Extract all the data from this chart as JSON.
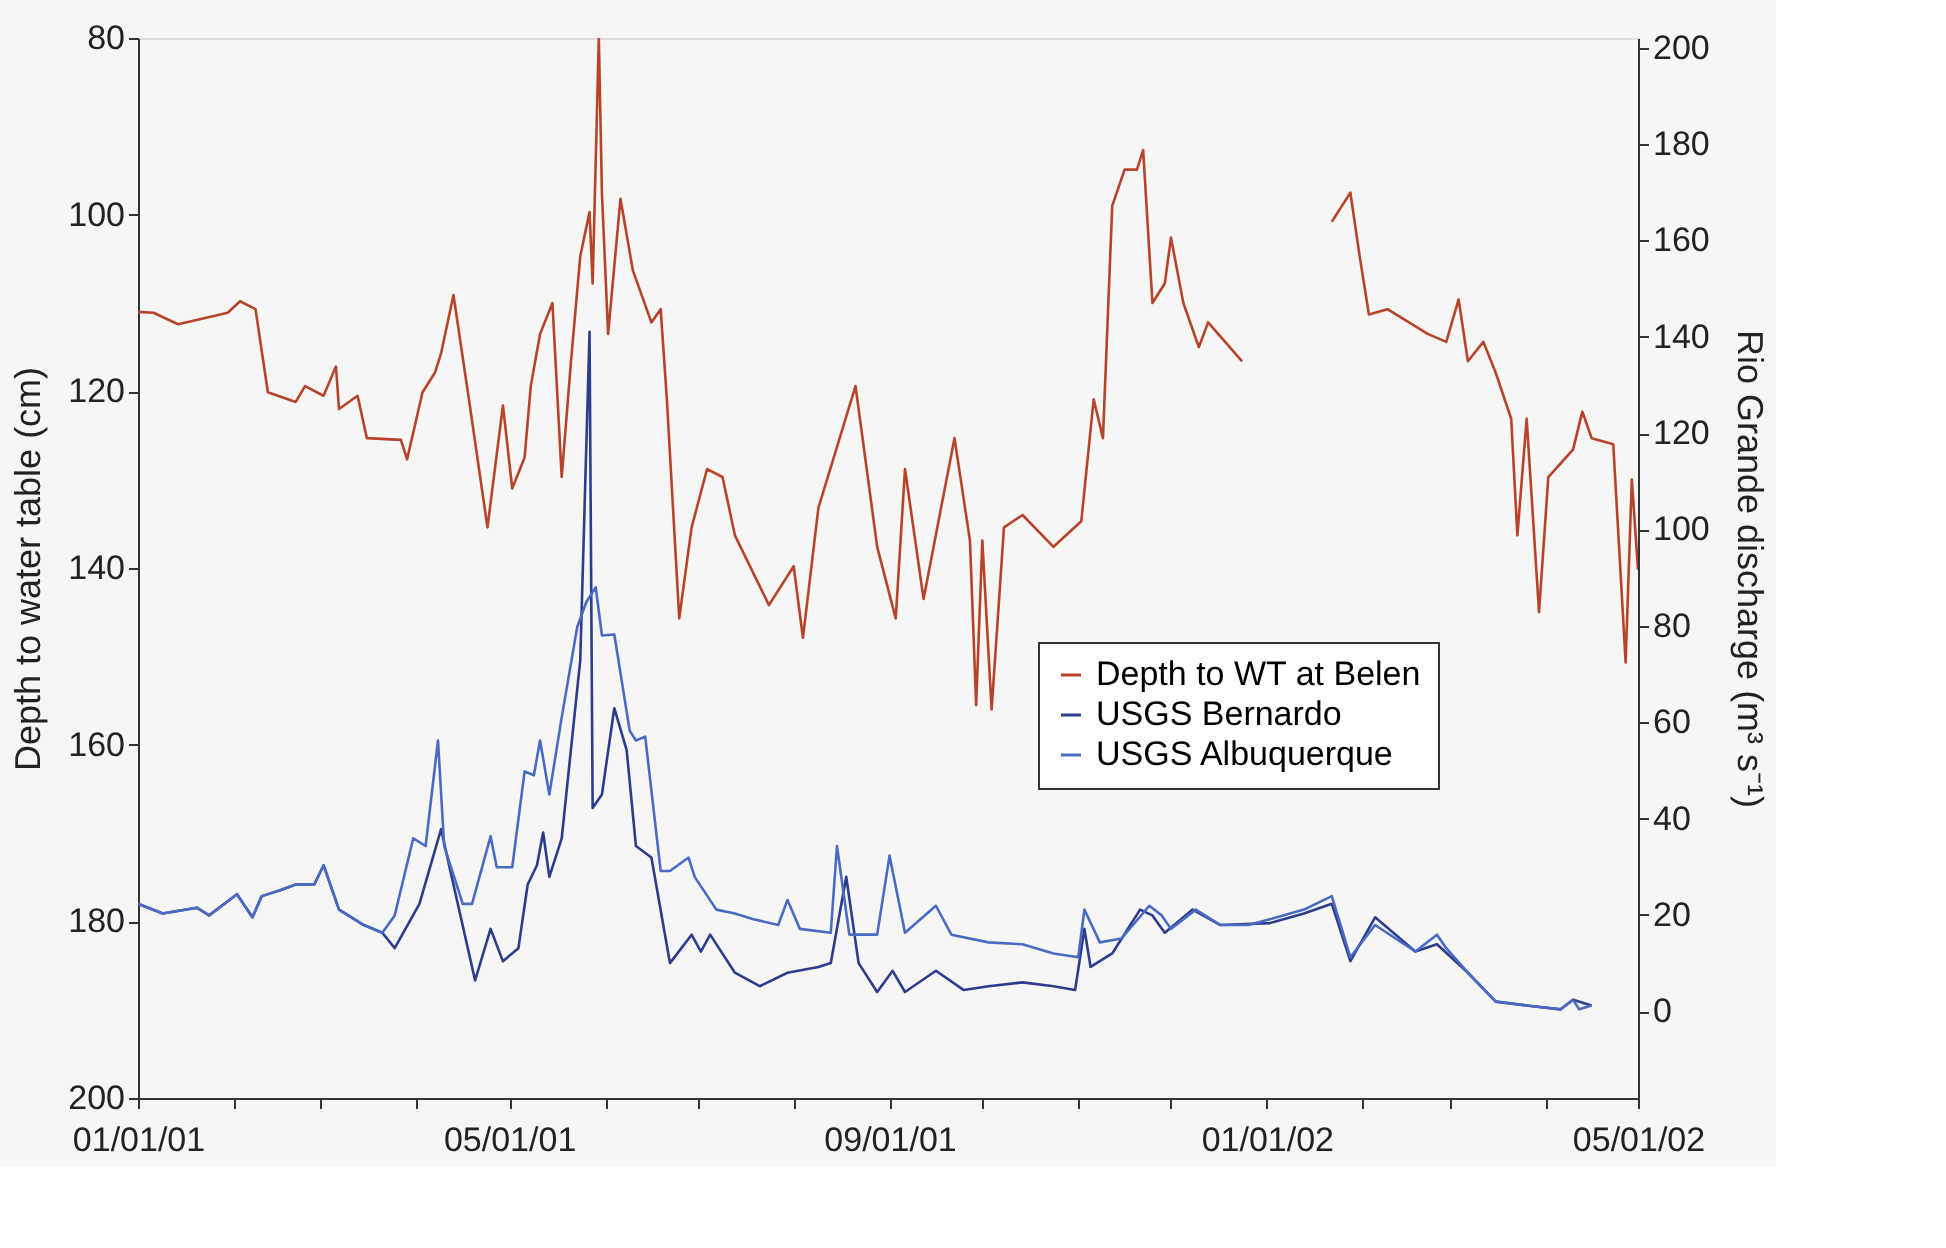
{
  "chart_data": {
    "type": "line",
    "ylabel": "Depth to water table (cm)",
    "y2label": "Rio Grande discharge (m³ s⁻¹)",
    "ylim": [
      200,
      80
    ],
    "yticks": [
      80,
      100,
      120,
      140,
      160,
      180,
      200
    ],
    "y2lim": [
      -18,
      202
    ],
    "y2ticks": [
      0,
      20,
      40,
      60,
      80,
      100,
      120,
      140,
      160,
      180,
      200
    ],
    "xlim": [
      "2001-01-01",
      "2002-05-01"
    ],
    "xticks": [
      {
        "value": "2001-01-01",
        "label": "01/01/01"
      },
      {
        "value": "2001-02-01",
        "label": null
      },
      {
        "value": "2001-03-01",
        "label": null
      },
      {
        "value": "2001-04-01",
        "label": null
      },
      {
        "value": "2001-05-01",
        "label": "05/01/01"
      },
      {
        "value": "2001-06-01",
        "label": null
      },
      {
        "value": "2001-07-01",
        "label": null
      },
      {
        "value": "2001-08-01",
        "label": null
      },
      {
        "value": "2001-09-01",
        "label": "09/01/01"
      },
      {
        "value": "2001-10-01",
        "label": null
      },
      {
        "value": "2001-11-01",
        "label": null
      },
      {
        "value": "2001-12-01",
        "label": null
      },
      {
        "value": "2002-01-01",
        "label": "01/01/02"
      },
      {
        "value": "2002-02-01",
        "label": null
      },
      {
        "value": "2002-03-01",
        "label": null
      },
      {
        "value": "2002-04-01",
        "label": null
      },
      {
        "value": "2002-05-01",
        "label": "05/01/02"
      }
    ],
    "legend": "right",
    "series": [
      {
        "name": "Depth to WT at Belen",
        "color": "#b8432b",
        "x": [
          "2001-01-01",
          "2001-01-06",
          "2001-01-14",
          "2001-01-30",
          "2001-02-03",
          "2001-02-08",
          "2001-02-12",
          "2001-02-21",
          "2001-02-24",
          "2001-03-02",
          "2001-03-06",
          "2001-03-07",
          "2001-03-13",
          "2001-03-16",
          "2001-03-27",
          "2001-03-29",
          "2001-04-03",
          "2001-04-07",
          "2001-04-09",
          "2001-04-13",
          "2001-04-18",
          "2001-04-24",
          "2001-04-29",
          "2001-05-02",
          "2001-05-06",
          "2001-05-08",
          "2001-05-11",
          "2001-05-15",
          "2001-05-18",
          "2001-05-21",
          "2001-05-24",
          "2001-05-27",
          "2001-05-28",
          "2001-05-30",
          "2001-05-31",
          "2001-06-02",
          "2001-06-06",
          "2001-06-10",
          "2001-06-16",
          "2001-06-19",
          "2001-06-21",
          "2001-06-25",
          "2001-06-29",
          "2001-07-04",
          "2001-07-09",
          "2001-07-13",
          "2001-07-24",
          "2001-08-01",
          "2001-08-04",
          "2001-08-09",
          "2001-08-21",
          "2001-08-28",
          "2001-09-03",
          "2001-09-06",
          "2001-09-12",
          "2001-09-22",
          "2001-09-27",
          "2001-09-29",
          "2001-10-01",
          "2001-10-04",
          "2001-10-08",
          "2001-10-14",
          "2001-10-24",
          "2001-11-02",
          "2001-11-06",
          "2001-11-09",
          "2001-11-12",
          "2001-11-16",
          "2001-11-20",
          "2001-11-22",
          "2001-11-25",
          "2001-11-29",
          "2001-12-01",
          "2001-12-05",
          "2001-12-10",
          "2001-12-13",
          "2001-12-24",
          "2002-01-05",
          "2002-01-22",
          "2002-01-28",
          "2002-01-31",
          "2002-02-03",
          "2002-02-09",
          "2002-02-22",
          "2002-02-28",
          "2002-03-04",
          "2002-03-07",
          "2002-03-12",
          "2002-03-16",
          "2002-03-21",
          "2002-03-23",
          "2002-03-26",
          "2002-03-30",
          "2002-04-02",
          "2002-04-10",
          "2002-04-13",
          "2002-04-16",
          "2002-04-23",
          "2002-04-27",
          "2002-04-29",
          "2002-05-01"
        ],
        "values": [
          111,
          111.1,
          112.4,
          111.1,
          109.8,
          110.7,
          120.1,
          121.2,
          119.4,
          120.5,
          117.2,
          122,
          120.5,
          125.3,
          125.5,
          127.7,
          120.1,
          117.9,
          115.7,
          109.1,
          120.9,
          135.4,
          121.6,
          131,
          127.5,
          119.4,
          113.5,
          110,
          129.7,
          116.6,
          104.7,
          99.7,
          107.8,
          80,
          97.5,
          113.5,
          98.2,
          106.3,
          112.2,
          110.7,
          120.9,
          145.7,
          135.4,
          128.8,
          129.7,
          136.3,
          144.2,
          139.8,
          147.9,
          133.2,
          119.4,
          137.6,
          145.7,
          128.8,
          143.5,
          125.3,
          136.9,
          155.5,
          136.9,
          156,
          135.4,
          134,
          137.6,
          134.7,
          120.9,
          125.3,
          99,
          94.9,
          94.9,
          92.7,
          110,
          107.8,
          102.6,
          110,
          115,
          112.2,
          116.6,
          null,
          100.8,
          97.5,
          104.7,
          111.3,
          110.7,
          113.5,
          114.4,
          109.6,
          116.6,
          114.4,
          117.9,
          123.1,
          136.3,
          123.1,
          145,
          129.7,
          126.6,
          122.3,
          125.3,
          126,
          150.7,
          130,
          140.2
        ]
      },
      {
        "name": "USGS Bernardo",
        "color": "#2b3d8c",
        "axis": "y2",
        "x": [
          "2001-01-01",
          "2001-01-09",
          "2001-01-20",
          "2001-01-24",
          "2001-02-02",
          "2001-02-07",
          "2001-02-10",
          "2001-02-16",
          "2001-02-21",
          "2001-02-27",
          "2001-03-02",
          "2001-03-07",
          "2001-03-15",
          "2001-03-21",
          "2001-03-25",
          "2001-04-02",
          "2001-04-09",
          "2001-04-12",
          "2001-04-20",
          "2001-04-25",
          "2001-04-29",
          "2001-05-04",
          "2001-05-07",
          "2001-05-10",
          "2001-05-12",
          "2001-05-14",
          "2001-05-18",
          "2001-05-24",
          "2001-05-27",
          "2001-05-28",
          "2001-05-31",
          "2001-06-04",
          "2001-06-08",
          "2001-06-11",
          "2001-06-16",
          "2001-06-22",
          "2001-06-29",
          "2001-07-02",
          "2001-07-05",
          "2001-07-13",
          "2001-07-21",
          "2001-07-30",
          "2001-08-09",
          "2001-08-13",
          "2001-08-18",
          "2001-08-22",
          "2001-08-28",
          "2001-09-02",
          "2001-09-06",
          "2001-09-16",
          "2001-09-25",
          "2001-10-03",
          "2001-10-14",
          "2001-10-24",
          "2001-10-31",
          "2001-11-03",
          "2001-11-05",
          "2001-11-12",
          "2001-11-21",
          "2001-11-25",
          "2001-11-29",
          "2001-12-08",
          "2001-12-17",
          "2002-01-02",
          "2002-01-13",
          "2002-01-22",
          "2002-01-28",
          "2002-02-05",
          "2002-02-18",
          "2002-02-25",
          "2002-03-07",
          "2002-03-16",
          "2002-03-26",
          "2002-04-06",
          "2002-04-10",
          "2002-04-16"
        ],
        "values": [
          22.3,
          20.3,
          21.5,
          19.9,
          24.3,
          19.5,
          23.9,
          25.1,
          26.3,
          26.3,
          30.3,
          21.1,
          17.9,
          16.3,
          13.1,
          22.3,
          37.8,
          29.1,
          6.4,
          17.1,
          10.4,
          13.1,
          26.3,
          30.3,
          37.1,
          27.9,
          35.9,
          72.9,
          141,
          42.2,
          45,
          62.9,
          54.2,
          34.3,
          31.9,
          10,
          15.9,
          12.4,
          15.9,
          8,
          5.2,
          8,
          9.2,
          10,
          27.9,
          10,
          4,
          8.4,
          4,
          8.4,
          4.4,
          5.2,
          6,
          5.2,
          4.4,
          17.1,
          9.2,
          12,
          21.1,
          19.9,
          16.3,
          21.1,
          17.9,
          18.3,
          20.3,
          22.3,
          10.4,
          19.5,
          12.4,
          13.9,
          8,
          2,
          1.2,
          0.4,
          2.4,
          1.2
        ]
      },
      {
        "name": "USGS Albuquerque",
        "color": "#4a6bc4",
        "axis": "y2",
        "x": [
          "2001-01-01",
          "2001-01-09",
          "2001-01-20",
          "2001-01-24",
          "2001-02-02",
          "2001-02-07",
          "2001-02-10",
          "2001-02-16",
          "2001-02-21",
          "2001-02-27",
          "2001-03-02",
          "2001-03-07",
          "2001-03-15",
          "2001-03-21",
          "2001-03-25",
          "2001-03-31",
          "2001-04-04",
          "2001-04-08",
          "2001-04-10",
          "2001-04-16",
          "2001-04-19",
          "2001-04-25",
          "2001-04-27",
          "2001-05-02",
          "2001-05-06",
          "2001-05-09",
          "2001-05-11",
          "2001-05-14",
          "2001-05-18",
          "2001-05-23",
          "2001-05-26",
          "2001-05-29",
          "2001-05-31",
          "2001-06-04",
          "2001-06-09",
          "2001-06-11",
          "2001-06-14",
          "2001-06-19",
          "2001-06-22",
          "2001-06-28",
          "2001-06-30",
          "2001-07-07",
          "2001-07-13",
          "2001-07-19",
          "2001-07-27",
          "2001-07-30",
          "2001-08-03",
          "2001-08-13",
          "2001-08-15",
          "2001-08-19",
          "2001-08-28",
          "2001-09-01",
          "2001-09-06",
          "2001-09-16",
          "2001-09-21",
          "2001-10-03",
          "2001-10-14",
          "2001-10-24",
          "2001-11-01",
          "2001-11-03",
          "2001-11-08",
          "2001-11-15",
          "2001-11-24",
          "2001-11-28",
          "2001-12-01",
          "2001-12-09",
          "2001-12-17",
          "2001-12-26",
          "2002-01-02",
          "2002-01-13",
          "2002-01-22",
          "2002-01-28",
          "2002-02-05",
          "2002-02-18",
          "2002-02-25",
          "2002-02-28",
          "2002-03-07",
          "2002-03-16",
          "2002-03-26",
          "2002-04-06",
          "2002-04-10",
          "2002-04-12",
          "2002-04-16"
        ],
        "values": [
          22.3,
          20.3,
          21.5,
          19.9,
          24.3,
          19.5,
          23.9,
          25.1,
          26.3,
          26.3,
          30.3,
          21.1,
          17.9,
          16.3,
          19.9,
          35.9,
          34.3,
          56.2,
          34.3,
          22.3,
          22.3,
          36.3,
          29.9,
          29.9,
          49.8,
          49,
          56.2,
          45,
          61,
          79.7,
          85,
          88,
          78,
          78.2,
          58.2,
          56.2,
          57,
          29.1,
          29.1,
          31.9,
          27.9,
          21.1,
          20.3,
          19.1,
          17.9,
          23.1,
          17.1,
          16.3,
          34.3,
          15.9,
          15.9,
          32.3,
          16.3,
          21.9,
          15.9,
          14.3,
          13.9,
          12,
          11.2,
          21.1,
          14.3,
          15.1,
          21.9,
          19.9,
          17.1,
          21.1,
          17.9,
          17.9,
          19.1,
          21.1,
          23.9,
          11.2,
          17.9,
          12.4,
          15.9,
          13.1,
          8,
          2,
          1.2,
          0.4,
          2.4,
          0.4,
          1.2
        ]
      }
    ]
  }
}
